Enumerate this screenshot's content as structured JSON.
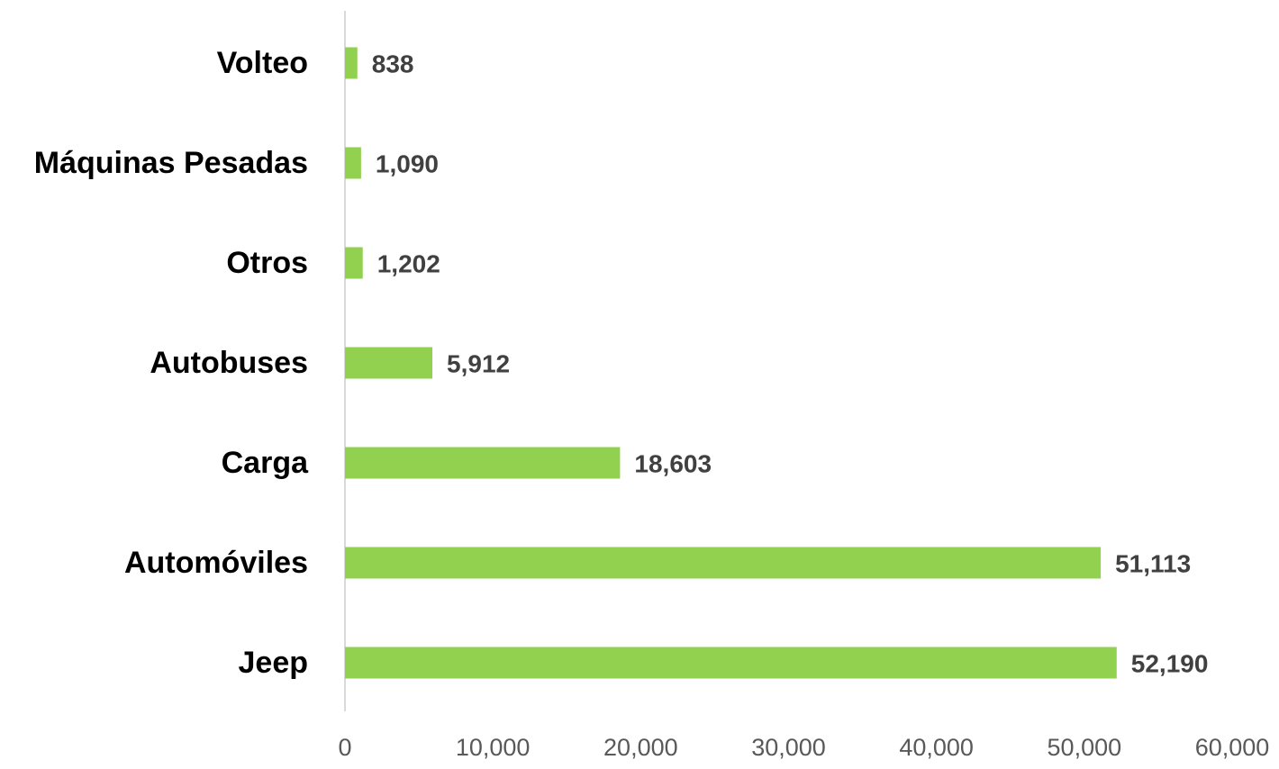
{
  "chart_data": {
    "type": "hbar",
    "categories": [
      "Volteo",
      "Máquinas Pesadas",
      "Otros",
      "Autobuses",
      "Carga",
      "Automóviles",
      "Jeep"
    ],
    "values": [
      838,
      1090,
      1202,
      5912,
      18603,
      51113,
      52190
    ],
    "value_labels": [
      "838",
      "1,090",
      "1,202",
      "5,912",
      "18,603",
      "51,113",
      "52,190"
    ],
    "color": "#92d050",
    "xlim": [
      0,
      60000
    ],
    "xticks": [
      0,
      {
        "value": 10000,
        "label": "10,000"
      },
      {
        "value": 20000,
        "label": "20,000"
      },
      {
        "value": 30000,
        "label": "30,000"
      },
      {
        "value": 40000,
        "label": "40,000"
      },
      {
        "value": 50000,
        "label": "50,000"
      },
      {
        "value": 60000,
        "label": "60,000"
      }
    ],
    "grid": false
  }
}
